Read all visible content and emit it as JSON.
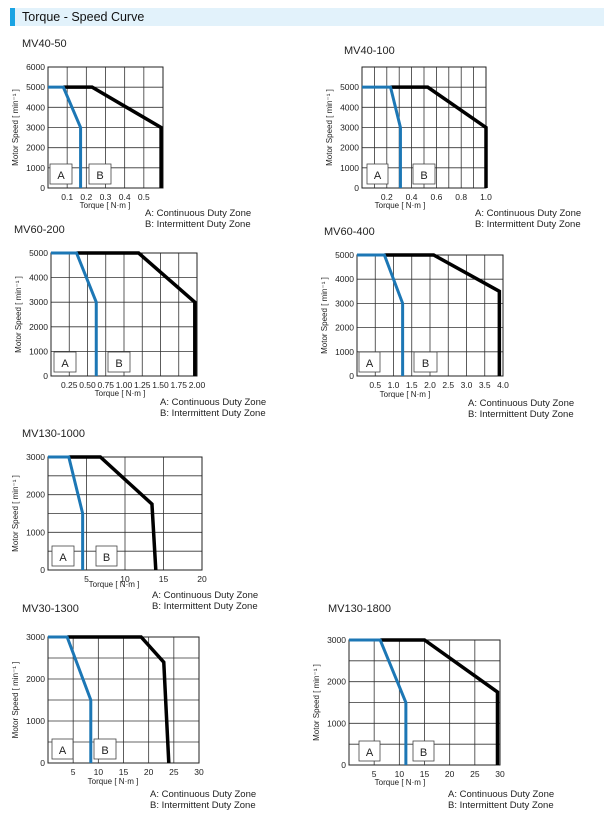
{
  "header": {
    "title": "Torque - Speed Curve"
  },
  "colors": {
    "accent": "#1aa3e3",
    "continuous": "#1c77b5",
    "intermittent": "#000000"
  },
  "chart_data": [
    {
      "type": "line",
      "title": "MV40-50",
      "xlabel": "Torque [ N·m ]",
      "ylabel": "Motor Speed [ min⁻¹ ]",
      "xlim": [
        0,
        0.6
      ],
      "ylim": [
        0,
        6000
      ],
      "x_grid_step": 0.1,
      "y_grid_step": 1000,
      "x_ticks": [
        0.1,
        0.2,
        0.3,
        0.4,
        0.5
      ],
      "x_tick_labels": [
        "0.1",
        "0.2",
        "0.3",
        "0.4",
        "0.5"
      ],
      "y_ticks": [
        0,
        1000,
        2000,
        3000,
        4000,
        5000,
        6000
      ],
      "y_tick_labels": [
        "0",
        "1000",
        "2000",
        "3000",
        "4000",
        "5000",
        "6000"
      ],
      "zone_labels": [
        "A",
        "B"
      ],
      "legend": [
        "A: Continuous Duty Zone",
        "B: Intermittent Duty Zone"
      ],
      "series": [
        {
          "name": "Continuous",
          "x": [
            0,
            0.08,
            0.17,
            0.17
          ],
          "y": [
            5000,
            5000,
            3000,
            0
          ]
        },
        {
          "name": "Intermittent",
          "x": [
            0.08,
            0.23,
            0.59,
            0.59
          ],
          "y": [
            5000,
            5000,
            3000,
            0
          ]
        }
      ]
    },
    {
      "type": "line",
      "title": "MV40-100",
      "xlabel": "Torque [ N·m ]",
      "ylabel": "Motor Speed [ min⁻¹ ]",
      "xlim": [
        0,
        1.0
      ],
      "ylim": [
        0,
        6000
      ],
      "x_grid_step": 0.1,
      "y_grid_step": 1000,
      "x_ticks": [
        0.2,
        0.4,
        0.6,
        0.8,
        1.0
      ],
      "x_tick_labels": [
        "0.2",
        "0.4",
        "0.6",
        "0.8",
        "1.0"
      ],
      "y_ticks": [
        0,
        1000,
        2000,
        3000,
        4000,
        5000
      ],
      "y_tick_labels": [
        "0",
        "1000",
        "2000",
        "3000",
        "4000",
        "5000"
      ],
      "zone_labels": [
        "A",
        "B"
      ],
      "legend": [
        "A: Continuous Duty Zone",
        "B: Intermittent Duty Zone"
      ],
      "series": [
        {
          "name": "Continuous",
          "x": [
            0,
            0.23,
            0.31,
            0.31
          ],
          "y": [
            5000,
            5000,
            3000,
            0
          ]
        },
        {
          "name": "Intermittent",
          "x": [
            0.23,
            0.53,
            1.0,
            1.0
          ],
          "y": [
            5000,
            5000,
            3000,
            0
          ]
        }
      ]
    },
    {
      "type": "line",
      "title": "MV60-200",
      "xlabel": "Torque [ N·m ]",
      "ylabel": "Motor Speed [ min⁻¹ ]",
      "xlim": [
        0,
        2.0
      ],
      "ylim": [
        0,
        5000
      ],
      "x_grid_step": 0.25,
      "y_grid_step": 1000,
      "x_ticks": [
        0.25,
        0.5,
        0.75,
        1.0,
        1.25,
        1.5,
        1.75,
        2.0
      ],
      "x_tick_labels": [
        "0.25",
        "0.50",
        "0.75",
        "1.00",
        "1.25",
        "1.50",
        "1.75",
        "2.00"
      ],
      "y_ticks": [
        0,
        1000,
        2000,
        3000,
        4000,
        5000
      ],
      "y_tick_labels": [
        "0",
        "1000",
        "2000",
        "3000",
        "4000",
        "5000"
      ],
      "zone_labels": [
        "A",
        "B"
      ],
      "legend": [
        "A: Continuous Duty Zone",
        "B: Intermittent Duty Zone"
      ],
      "series": [
        {
          "name": "Continuous",
          "x": [
            0,
            0.35,
            0.62,
            0.62
          ],
          "y": [
            5000,
            5000,
            3000,
            0
          ]
        },
        {
          "name": "Intermittent",
          "x": [
            0.35,
            1.2,
            1.97,
            1.97
          ],
          "y": [
            5000,
            5000,
            3000,
            0
          ]
        }
      ]
    },
    {
      "type": "line",
      "title": "MV60-400",
      "xlabel": "Torque [ N·m ]",
      "ylabel": "Motor Speed [ min⁻¹ ]",
      "xlim": [
        0,
        4.0
      ],
      "ylim": [
        0,
        5000
      ],
      "x_grid_step": 0.5,
      "y_grid_step": 1000,
      "x_ticks": [
        0.5,
        1.0,
        1.5,
        2.0,
        2.5,
        3.0,
        3.5,
        4.0
      ],
      "x_tick_labels": [
        "0.5",
        "1.0",
        "1.5",
        "2.0",
        "2.5",
        "3.0",
        "3.5",
        "4.0"
      ],
      "y_ticks": [
        0,
        1000,
        2000,
        3000,
        4000,
        5000
      ],
      "y_tick_labels": [
        "0",
        "1000",
        "2000",
        "3000",
        "4000",
        "5000"
      ],
      "zone_labels": [
        "A",
        "B"
      ],
      "legend": [
        "A: Continuous Duty Zone",
        "B: Intermittent Duty Zone"
      ],
      "series": [
        {
          "name": "Continuous",
          "x": [
            0,
            0.75,
            1.25,
            1.25
          ],
          "y": [
            5000,
            5000,
            3000,
            0
          ]
        },
        {
          "name": "Intermittent",
          "x": [
            0.75,
            2.1,
            3.9,
            3.9
          ],
          "y": [
            5000,
            5000,
            3500,
            0
          ]
        }
      ]
    },
    {
      "type": "line",
      "title": "MV130-1000",
      "xlabel": "Torque [ N·m ]",
      "ylabel": "Motor Speed [ min⁻¹ ]",
      "xlim": [
        0,
        20
      ],
      "ylim": [
        0,
        3000
      ],
      "x_grid_step": 5,
      "y_grid_step": 500,
      "x_ticks": [
        5,
        10,
        15,
        20
      ],
      "x_tick_labels": [
        "5",
        "10",
        "15",
        "20"
      ],
      "y_ticks": [
        0,
        1000,
        2000,
        3000
      ],
      "y_tick_labels": [
        "0",
        "1000",
        "2000",
        "3000"
      ],
      "zone_labels": [
        "A",
        "B"
      ],
      "legend": [
        "A: Continuous Duty Zone",
        "B: Intermittent Duty Zone"
      ],
      "series": [
        {
          "name": "Continuous",
          "x": [
            0,
            2.7,
            4.5,
            4.5
          ],
          "y": [
            3000,
            3000,
            1500,
            0
          ]
        },
        {
          "name": "Intermittent",
          "x": [
            2.7,
            6.8,
            13.5,
            14
          ],
          "y": [
            3000,
            3000,
            1750,
            0
          ]
        }
      ]
    },
    {
      "type": "line",
      "title": "MV30-1300",
      "xlabel": "Torque [ N·m ]",
      "ylabel": "Motor Speed [ min⁻¹ ]",
      "xlim": [
        0,
        30
      ],
      "ylim": [
        0,
        3000
      ],
      "x_grid_step": 5,
      "y_grid_step": 500,
      "x_ticks": [
        5,
        10,
        15,
        20,
        25,
        30
      ],
      "x_tick_labels": [
        "5",
        "10",
        "15",
        "20",
        "25",
        "30"
      ],
      "y_ticks": [
        0,
        1000,
        2000,
        3000
      ],
      "y_tick_labels": [
        "0",
        "1000",
        "2000",
        "3000"
      ],
      "zone_labels": [
        "A",
        "B"
      ],
      "legend": [
        "A: Continuous Duty Zone",
        "B: Intermittent Duty Zone"
      ],
      "series": [
        {
          "name": "Continuous",
          "x": [
            0,
            3.8,
            8.5,
            8.5
          ],
          "y": [
            3000,
            3000,
            1500,
            0
          ]
        },
        {
          "name": "Intermittent",
          "x": [
            3.8,
            18.5,
            23,
            24
          ],
          "y": [
            3000,
            3000,
            2400,
            0
          ]
        }
      ]
    },
    {
      "type": "line",
      "title": "MV130-1800",
      "xlabel": "Torque [ N·m ]",
      "ylabel": "Motor Speed [ min⁻¹ ]",
      "xlim": [
        0,
        30
      ],
      "ylim": [
        0,
        3000
      ],
      "x_grid_step": 5,
      "y_grid_step": 500,
      "x_ticks": [
        5,
        10,
        15,
        20,
        25,
        30
      ],
      "x_tick_labels": [
        "5",
        "10",
        "15",
        "20",
        "25",
        "30"
      ],
      "y_ticks": [
        0,
        1000,
        2000,
        3000
      ],
      "y_tick_labels": [
        "0",
        "1000",
        "2000",
        "3000"
      ],
      "zone_labels": [
        "A",
        "B"
      ],
      "legend": [
        "A: Continuous Duty Zone",
        "B: Intermittent Duty Zone"
      ],
      "series": [
        {
          "name": "Continuous",
          "x": [
            0,
            6.2,
            11.3,
            11.3
          ],
          "y": [
            3000,
            3000,
            1500,
            0
          ]
        },
        {
          "name": "Intermittent",
          "x": [
            6.2,
            15,
            29.5,
            29.5
          ],
          "y": [
            3000,
            3000,
            1750,
            0
          ]
        }
      ]
    }
  ]
}
